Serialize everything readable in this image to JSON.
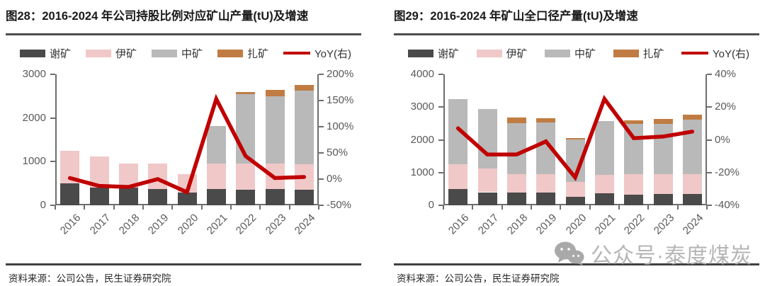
{
  "watermark": {
    "icon": "wechat-icon",
    "text": "公众号·泰度煤炭"
  },
  "charts": [
    {
      "figure_title": "图28：2016-2024 年公司持股比例对应矿山产量(tU)及增速",
      "source": "资料来源：公司公告，民生证券研究院",
      "chart_data": {
        "type": "bar",
        "subtype": "stacked-bar-with-line",
        "categories": [
          "2016",
          "2017",
          "2018",
          "2019",
          "2020",
          "2021",
          "2022",
          "2023",
          "2024"
        ],
        "series": [
          {
            "name": "谢矿",
            "color": "#4a4a4a",
            "values": [
              500,
              400,
              400,
              380,
              295,
              375,
              360,
              375,
              350
            ]
          },
          {
            "name": "伊矿",
            "color": "#f0c8c8",
            "values": [
              750,
              720,
              550,
              570,
              420,
              585,
              600,
              585,
              595
            ]
          },
          {
            "name": "中矿",
            "color": "#b9b9b9",
            "values": [
              0,
              0,
              0,
              0,
              0,
              850,
              1590,
              1540,
              1675
            ]
          },
          {
            "name": "扎矿",
            "color": "#c07c42",
            "values": [
              0,
              0,
              0,
              0,
              0,
              0,
              50,
              140,
              130
            ]
          }
        ],
        "line": {
          "name": "YoY(右)",
          "color": "#c00000",
          "axis": "right",
          "values_pct": [
            2,
            -13,
            -15,
            0,
            -25,
            153,
            44,
            2,
            4
          ]
        },
        "left_axis": {
          "min": 0,
          "max": 3000,
          "ticks": [
            0,
            1000,
            2000,
            3000
          ]
        },
        "right_axis": {
          "min": -50,
          "max": 200,
          "tick_values": [
            -50,
            0,
            50,
            100,
            150,
            200
          ],
          "tick_labels": [
            "-50%",
            "0%",
            "50%",
            "100%",
            "150%",
            "200%"
          ]
        },
        "grid": false,
        "legend_position": "top"
      }
    },
    {
      "figure_title": "图29：2016-2024 年矿山全口径产量(tU)及增速",
      "source": "资料来源：公司公告，民生证券研究院",
      "chart_data": {
        "type": "bar",
        "subtype": "stacked-bar-with-line",
        "categories": [
          "2016",
          "2017",
          "2018",
          "2019",
          "2020",
          "2021",
          "2022",
          "2023",
          "2024"
        ],
        "series": [
          {
            "name": "谢矿",
            "color": "#4a4a4a",
            "values": [
              500,
              400,
              380,
              380,
              270,
              360,
              330,
              340,
              355
            ]
          },
          {
            "name": "伊矿",
            "color": "#f0c8c8",
            "values": [
              750,
              730,
              570,
              570,
              450,
              560,
              620,
              610,
              600
            ]
          },
          {
            "name": "中矿",
            "color": "#b9b9b9",
            "values": [
              2000,
              1820,
              1560,
              1580,
              1290,
              1645,
              1545,
              1530,
              1655
            ]
          },
          {
            "name": "扎矿",
            "color": "#c07c42",
            "values": [
              0,
              0,
              170,
              120,
              40,
              0,
              105,
              165,
              165
            ]
          }
        ],
        "line": {
          "name": "YoY(右)",
          "color": "#c00000",
          "axis": "right",
          "values_pct": [
            7,
            -9,
            -9,
            -1,
            -23,
            25,
            1,
            2,
            5
          ]
        },
        "left_axis": {
          "min": 0,
          "max": 4000,
          "ticks": [
            0,
            1000,
            2000,
            3000,
            4000
          ]
        },
        "right_axis": {
          "min": -40,
          "max": 40,
          "tick_values": [
            -40,
            -20,
            0,
            20,
            40
          ],
          "tick_labels": [
            "-40%",
            "-20%",
            "0%",
            "20%",
            "40%"
          ]
        },
        "grid": false,
        "legend_position": "top"
      }
    }
  ]
}
